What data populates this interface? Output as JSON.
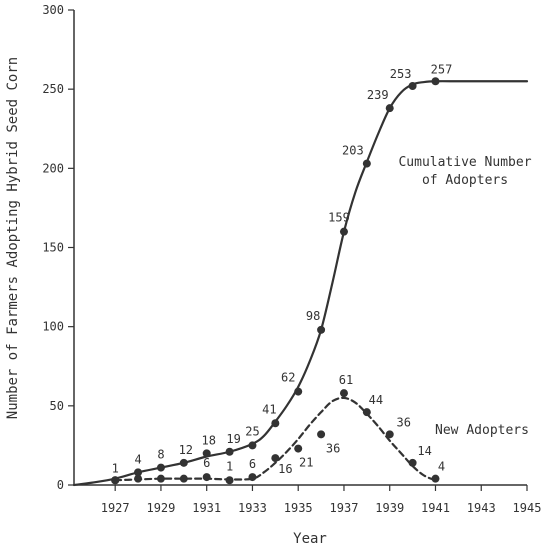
{
  "chart_data": {
    "type": "line",
    "title": "",
    "xlabel": "Year",
    "ylabel": "Number of Farmers Adopting Hybrid Seed Corn",
    "xlim": [
      1925.2,
      1945
    ],
    "ylim": [
      0,
      300
    ],
    "x_ticks": [
      1927,
      1929,
      1931,
      1933,
      1935,
      1937,
      1939,
      1941,
      1943,
      1945
    ],
    "y_ticks": [
      0,
      50,
      100,
      150,
      200,
      250,
      300
    ],
    "x_tick_labels": [
      "1927",
      "1929",
      "1931",
      "1933",
      "1935",
      "1937",
      "1939",
      "1941",
      "1943",
      "1945"
    ],
    "y_tick_labels": [
      "0",
      "50",
      "100",
      "150",
      "200",
      "250",
      "300"
    ],
    "grid": false,
    "legend": "none",
    "annotations": {
      "cumulative_line1": "Cumulative Number",
      "cumulative_line2": "of Adopters",
      "new": "New Adopters"
    },
    "series": [
      {
        "key": "cumulative",
        "style": "solid",
        "color": "#333333",
        "points": [
          {
            "x": 1927,
            "y": 3,
            "label": "1"
          },
          {
            "x": 1928,
            "y": 8,
            "label": "4"
          },
          {
            "x": 1929,
            "y": 11,
            "label": "8"
          },
          {
            "x": 1930,
            "y": 14,
            "label": "12"
          },
          {
            "x": 1931,
            "y": 20,
            "label": "18"
          },
          {
            "x": 1932,
            "y": 21,
            "label": "19"
          },
          {
            "x": 1933,
            "y": 25,
            "label": "25"
          },
          {
            "x": 1934,
            "y": 39,
            "label": "41"
          },
          {
            "x": 1935,
            "y": 59,
            "label": "62"
          },
          {
            "x": 1936,
            "y": 98,
            "label": "98"
          },
          {
            "x": 1937,
            "y": 160,
            "label": "159"
          },
          {
            "x": 1938,
            "y": 203,
            "label": "203"
          },
          {
            "x": 1939,
            "y": 238,
            "label": "239"
          },
          {
            "x": 1940,
            "y": 252,
            "label": "253"
          },
          {
            "x": 1941,
            "y": 255,
            "label": "257"
          }
        ],
        "curve": [
          [
            1925.2,
            0
          ],
          [
            1926,
            1.5
          ],
          [
            1927,
            4
          ],
          [
            1928,
            8
          ],
          [
            1929,
            11
          ],
          [
            1930,
            14
          ],
          [
            1931,
            18
          ],
          [
            1932,
            21
          ],
          [
            1933,
            26
          ],
          [
            1933.5,
            31
          ],
          [
            1934,
            40
          ],
          [
            1934.5,
            50
          ],
          [
            1935,
            62
          ],
          [
            1935.5,
            78
          ],
          [
            1936,
            98
          ],
          [
            1936.5,
            128
          ],
          [
            1937,
            160
          ],
          [
            1937.5,
            185
          ],
          [
            1938,
            204
          ],
          [
            1938.5,
            222
          ],
          [
            1939,
            238
          ],
          [
            1939.5,
            248
          ],
          [
            1940,
            253
          ],
          [
            1940.5,
            254.5
          ],
          [
            1941,
            255
          ],
          [
            1942,
            255
          ],
          [
            1943,
            255
          ],
          [
            1944,
            255
          ],
          [
            1945,
            255
          ]
        ]
      },
      {
        "key": "new",
        "style": "dashed",
        "color": "#333333",
        "points": [
          {
            "x": 1927,
            "y": 3,
            "label": ""
          },
          {
            "x": 1928,
            "y": 4,
            "label": ""
          },
          {
            "x": 1929,
            "y": 4,
            "label": ""
          },
          {
            "x": 1930,
            "y": 4,
            "label": ""
          },
          {
            "x": 1931,
            "y": 5,
            "label": "6"
          },
          {
            "x": 1932,
            "y": 3,
            "label": "1"
          },
          {
            "x": 1933,
            "y": 5,
            "label": "6"
          },
          {
            "x": 1934,
            "y": 17,
            "label": "16"
          },
          {
            "x": 1935,
            "y": 23,
            "label": "21"
          },
          {
            "x": 1936,
            "y": 32,
            "label": "36"
          },
          {
            "x": 1937,
            "y": 58,
            "label": "61"
          },
          {
            "x": 1938,
            "y": 46,
            "label": "44"
          },
          {
            "x": 1939,
            "y": 32,
            "label": "36"
          },
          {
            "x": 1940,
            "y": 14,
            "label": "14"
          },
          {
            "x": 1941,
            "y": 4,
            "label": "4"
          }
        ],
        "curve": [
          [
            1927,
            3
          ],
          [
            1928,
            3.5
          ],
          [
            1929,
            4
          ],
          [
            1930,
            4
          ],
          [
            1931,
            4
          ],
          [
            1932,
            3.5
          ],
          [
            1933,
            4
          ],
          [
            1933.5,
            8
          ],
          [
            1934,
            14
          ],
          [
            1934.5,
            21
          ],
          [
            1935,
            29
          ],
          [
            1935.5,
            38
          ],
          [
            1936,
            46
          ],
          [
            1936.5,
            53
          ],
          [
            1937,
            55
          ],
          [
            1937.5,
            52
          ],
          [
            1938,
            45
          ],
          [
            1938.5,
            37
          ],
          [
            1939,
            28
          ],
          [
            1939.5,
            20
          ],
          [
            1940,
            12
          ],
          [
            1940.5,
            6
          ],
          [
            1941,
            3
          ]
        ]
      }
    ]
  }
}
